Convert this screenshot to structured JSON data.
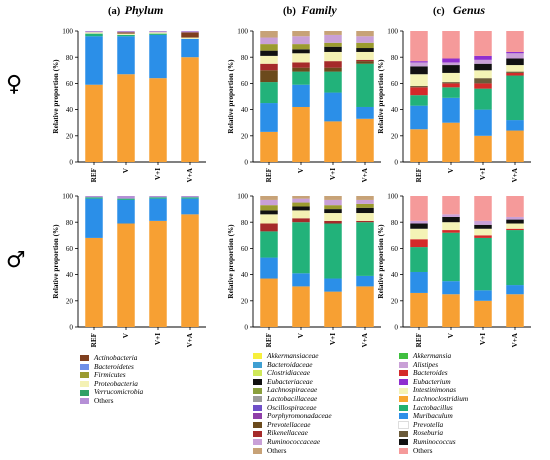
{
  "panel_headings": [
    {
      "letter": "(a)",
      "title": "Phylum"
    },
    {
      "letter": "(b)",
      "title": "Family"
    },
    {
      "letter": "(c)",
      "title": "Genus"
    }
  ],
  "row_labels": {
    "female": "♀",
    "male": "♂"
  },
  "colors": {
    "phylum": [
      "#7f3f1f",
      "#6f8fe8",
      "#9b9b2f",
      "#f4f1b4",
      "#2f9f66",
      "#b58fd6"
    ],
    "family": [
      "#f7ef3c",
      "#3f9fd2",
      "#cfe85a",
      "#111111",
      "#8a9f3d",
      "#9b9b9b",
      "#6f4fc8",
      "#8f3fa8",
      "#6b4a1c",
      "#a52a2a",
      "#c9a0d7",
      "#c7a277"
    ],
    "genus": [
      "#3fbf3f",
      "#c9a0d7",
      "#d42a2a",
      "#8f2fcf",
      "#f4f3b6",
      "#f7a62f",
      "#20b070",
      "#2f8fe8",
      "#ffffff",
      "#6b5b3a",
      "#111111",
      "#f59a9a"
    ],
    "base": "#f7a033",
    "green": "#22b27a",
    "blue": "#2b8fe8"
  },
  "chart_data": [
    {
      "type": "bar",
      "panel": "Phylum",
      "sex": "female",
      "categories": [
        "REF",
        "V",
        "V+I",
        "V+A"
      ],
      "ylabel": "Relative proportion (%)",
      "ylim": [
        0,
        100
      ],
      "yticks": [
        0,
        20,
        40,
        60,
        80,
        100
      ],
      "series": [
        {
          "name": "Firmicutes (base)",
          "color": "#f7a033",
          "values": [
            59,
            67,
            64,
            80
          ]
        },
        {
          "name": "Bacteroidetes",
          "color": "#2b8fe8",
          "values": [
            37,
            29,
            33,
            14
          ]
        },
        {
          "name": "Verrucomicrobia",
          "color": "#22b27a",
          "values": [
            2,
            1,
            1,
            0
          ]
        },
        {
          "name": "Proteobacteria",
          "color": "#f4f1b4",
          "values": [
            1,
            1,
            1,
            1
          ]
        },
        {
          "name": "Actinobacteria",
          "color": "#7f3f1f",
          "values": [
            0,
            1,
            0,
            4
          ]
        },
        {
          "name": "Others",
          "color": "#b58fd6",
          "values": [
            1,
            1,
            1,
            1
          ]
        }
      ]
    },
    {
      "type": "bar",
      "panel": "Family",
      "sex": "female",
      "categories": [
        "REF",
        "V",
        "V+I",
        "V+A"
      ],
      "ylabel": "Relative proportion (%)",
      "ylim": [
        0,
        100
      ],
      "yticks": [
        0,
        20,
        40,
        60,
        80,
        100
      ],
      "series": [
        {
          "name": "Lachnospiraceae",
          "color": "#f7a033",
          "values": [
            23,
            42,
            31,
            33
          ]
        },
        {
          "name": "Bacteroidaceae",
          "color": "#2b8fe8",
          "values": [
            22,
            17,
            22,
            9
          ]
        },
        {
          "name": "Lactobacillaceae",
          "color": "#22b27a",
          "values": [
            16,
            10,
            16,
            33
          ]
        },
        {
          "name": "Prevotellaceae",
          "color": "#6b4a1c",
          "values": [
            9,
            3,
            3,
            2
          ]
        },
        {
          "name": "Rikenellaceae",
          "color": "#a52a2a",
          "values": [
            5,
            4,
            5,
            1
          ]
        },
        {
          "name": "Akkermansiaceae",
          "color": "#f4f1b4",
          "values": [
            6,
            7,
            7,
            6
          ]
        },
        {
          "name": "Eubacteriaceae",
          "color": "#111111",
          "values": [
            4,
            3,
            4,
            3
          ]
        },
        {
          "name": "Oscillospiraceae",
          "color": "#9b9b2f",
          "values": [
            5,
            4,
            3,
            4
          ]
        },
        {
          "name": "Ruminococcaceae",
          "color": "#c9a0d7",
          "values": [
            5,
            6,
            6,
            5
          ]
        },
        {
          "name": "Others",
          "color": "#c7a277",
          "values": [
            5,
            4,
            3,
            4
          ]
        }
      ]
    },
    {
      "type": "bar",
      "panel": "Genus",
      "sex": "female",
      "categories": [
        "REF",
        "V",
        "V+I",
        "V+A"
      ],
      "ylabel": "Relative proportion (%)",
      "ylim": [
        0,
        100
      ],
      "yticks": [
        0,
        20,
        40,
        60,
        80,
        100
      ],
      "series": [
        {
          "name": "Lachnoclostridium",
          "color": "#f7a033",
          "values": [
            25,
            30,
            20,
            24
          ]
        },
        {
          "name": "Muribaculum",
          "color": "#2b8fe8",
          "values": [
            18,
            19,
            20,
            8
          ]
        },
        {
          "name": "Lactobacillus",
          "color": "#22b27a",
          "values": [
            8,
            8,
            16,
            34
          ]
        },
        {
          "name": "Bacteroides",
          "color": "#d42a2a",
          "values": [
            6,
            3,
            4,
            2
          ]
        },
        {
          "name": "Roseburia",
          "color": "#6b5b3a",
          "values": [
            1,
            1,
            4,
            1
          ]
        },
        {
          "name": "Intestinimonas",
          "color": "#f4f3b6",
          "values": [
            9,
            7,
            6,
            5
          ]
        },
        {
          "name": "Ruminococcus",
          "color": "#111111",
          "values": [
            6,
            6,
            5,
            5
          ]
        },
        {
          "name": "Alistipes",
          "color": "#c9a0d7",
          "values": [
            3,
            2,
            3,
            4
          ]
        },
        {
          "name": "Eubacterium",
          "color": "#8f2fcf",
          "values": [
            1,
            3,
            3,
            1
          ]
        },
        {
          "name": "Others",
          "color": "#f59a9a",
          "values": [
            23,
            21,
            19,
            16
          ]
        }
      ]
    },
    {
      "type": "bar",
      "panel": "Phylum",
      "sex": "male",
      "categories": [
        "REF",
        "V",
        "V+I",
        "V+A"
      ],
      "ylabel": "Relative proportion (%)",
      "ylim": [
        0,
        100
      ],
      "yticks": [
        0,
        20,
        40,
        60,
        80,
        100
      ],
      "series": [
        {
          "name": "Firmicutes (base)",
          "color": "#f7a033",
          "values": [
            68,
            79,
            81,
            86
          ]
        },
        {
          "name": "Bacteroidetes",
          "color": "#2b8fe8",
          "values": [
            30,
            18,
            17,
            12
          ]
        },
        {
          "name": "Verrucomicrobia",
          "color": "#22b27a",
          "values": [
            1,
            1,
            1,
            1
          ]
        },
        {
          "name": "Others",
          "color": "#b58fd6",
          "values": [
            1,
            2,
            1,
            1
          ]
        }
      ]
    },
    {
      "type": "bar",
      "panel": "Family",
      "sex": "male",
      "categories": [
        "REF",
        "V",
        "V+I",
        "V+A"
      ],
      "ylabel": "Relative proportion (%)",
      "ylim": [
        0,
        100
      ],
      "yticks": [
        0,
        20,
        40,
        60,
        80,
        100
      ],
      "series": [
        {
          "name": "Lachnospiraceae",
          "color": "#f7a033",
          "values": [
            37,
            31,
            27,
            31
          ]
        },
        {
          "name": "Bacteroidaceae",
          "color": "#2b8fe8",
          "values": [
            16,
            10,
            10,
            8
          ]
        },
        {
          "name": "Lactobacillaceae",
          "color": "#22b27a",
          "values": [
            20,
            39,
            42,
            41
          ]
        },
        {
          "name": "Rikenellaceae",
          "color": "#a52a2a",
          "values": [
            6,
            3,
            2,
            1
          ]
        },
        {
          "name": "Akkermansiaceae",
          "color": "#f4f1b4",
          "values": [
            7,
            6,
            6,
            6
          ]
        },
        {
          "name": "Eubacteriaceae",
          "color": "#111111",
          "values": [
            3,
            3,
            3,
            4
          ]
        },
        {
          "name": "Oscillospiraceae",
          "color": "#9b9b2f",
          "values": [
            4,
            3,
            3,
            3
          ]
        },
        {
          "name": "Ruminococcaceae",
          "color": "#c9a0d7",
          "values": [
            4,
            3,
            4,
            3
          ]
        },
        {
          "name": "Others",
          "color": "#c7a277",
          "values": [
            3,
            2,
            3,
            3
          ]
        }
      ]
    },
    {
      "type": "bar",
      "panel": "Genus",
      "sex": "male",
      "categories": [
        "REF",
        "V",
        "V+I",
        "V+A"
      ],
      "ylabel": "Relative proportion (%)",
      "ylim": [
        0,
        100
      ],
      "yticks": [
        0,
        20,
        40,
        60,
        80,
        100
      ],
      "series": [
        {
          "name": "Lachnoclostridium",
          "color": "#f7a033",
          "values": [
            26,
            25,
            20,
            25
          ]
        },
        {
          "name": "Muribaculum",
          "color": "#2b8fe8",
          "values": [
            16,
            10,
            8,
            7
          ]
        },
        {
          "name": "Lactobacillus",
          "color": "#22b27a",
          "values": [
            19,
            37,
            40,
            42
          ]
        },
        {
          "name": "Bacteroides",
          "color": "#d42a2a",
          "values": [
            6,
            2,
            2,
            1
          ]
        },
        {
          "name": "Intestinimonas",
          "color": "#f4f3b6",
          "values": [
            8,
            6,
            5,
            4
          ]
        },
        {
          "name": "Ruminococcus",
          "color": "#111111",
          "values": [
            4,
            4,
            3,
            3
          ]
        },
        {
          "name": "Alistipes",
          "color": "#c9a0d7",
          "values": [
            2,
            2,
            3,
            2
          ]
        },
        {
          "name": "Others",
          "color": "#f59a9a",
          "values": [
            19,
            14,
            19,
            16
          ]
        }
      ]
    }
  ],
  "legends": [
    {
      "panel": "Phylum",
      "items": [
        {
          "label": "Actinobacteria",
          "color": "#7f3f1f"
        },
        {
          "label": "Bacteroidetes",
          "color": "#6f8fe8"
        },
        {
          "label": "Firmicutes",
          "color": "#9b9b2f"
        },
        {
          "label": "Proteobacteria",
          "color": "#f4f1b4"
        },
        {
          "label": "Verrucomicrobia",
          "color": "#2f9f66"
        },
        {
          "label": "Others",
          "color": "#b58fd6",
          "plain": true
        }
      ]
    },
    {
      "panel": "Family",
      "items": [
        {
          "label": "Akkermansiaceae",
          "color": "#f7ef3c"
        },
        {
          "label": "Bacteroidaceae",
          "color": "#3f9fd2"
        },
        {
          "label": "Clostridiaceae",
          "color": "#cfe85a"
        },
        {
          "label": "Eubacteriaceae",
          "color": "#111111"
        },
        {
          "label": "Lachnospiraceae",
          "color": "#8a9f3d"
        },
        {
          "label": "Lactobacillaceae",
          "color": "#9b9b9b"
        },
        {
          "label": "Oscillospiraceae",
          "color": "#6f4fc8"
        },
        {
          "label": "Porphyromonadaceae",
          "color": "#8f3fa8"
        },
        {
          "label": "Prevotellaceae",
          "color": "#6b4a1c"
        },
        {
          "label": "Rikenellaceae",
          "color": "#a52a2a"
        },
        {
          "label": "Ruminococcaceae",
          "color": "#c9a0d7"
        },
        {
          "label": "Others",
          "color": "#c7a277",
          "plain": true
        }
      ]
    },
    {
      "panel": "Genus",
      "items": [
        {
          "label": "Akkermansia",
          "color": "#3fbf3f"
        },
        {
          "label": "Alistipes",
          "color": "#c9a0d7"
        },
        {
          "label": "Bacteroides",
          "color": "#d42a2a"
        },
        {
          "label": "Eubacterium",
          "color": "#8f2fcf"
        },
        {
          "label": "Intestinimonas",
          "color": "#f4f3b6"
        },
        {
          "label": "Lachnoclostridium",
          "color": "#f7a62f"
        },
        {
          "label": "Lactobacillus",
          "color": "#20b070"
        },
        {
          "label": "Muribaculum",
          "color": "#2f8fe8"
        },
        {
          "label": "Prevotella",
          "color": "#ffffff"
        },
        {
          "label": "Roseburia",
          "color": "#6b5b3a"
        },
        {
          "label": "Ruminococcus",
          "color": "#111111"
        },
        {
          "label": "Others",
          "color": "#f59a9a",
          "plain": true
        }
      ]
    }
  ]
}
